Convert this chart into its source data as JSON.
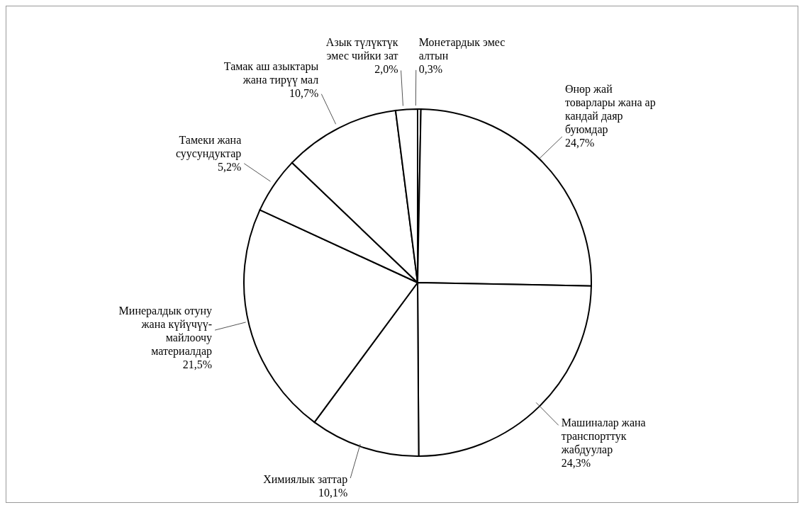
{
  "chart_data": {
    "type": "pie",
    "categories": [
      "Монетардык эмес\nалтын",
      "Өнөр жай\nтоварлары жана ар\nкандай даяр\nбуюмдар",
      "Машиналар жана\nтранспорттук\nжабдуулар",
      "Химиялык заттар",
      "Минералдык отуну\nжана күйүчүү-\nмайлоочу\nматериалдар",
      "Тамеки жана\nсуусундуктар",
      "Тамак аш азыктары\nжана тирүү мал",
      "Азык түлүктүк\nэмес чийки зат"
    ],
    "values": [
      0.3,
      24.7,
      24.3,
      10.1,
      21.5,
      5.2,
      10.7,
      2.0
    ],
    "value_labels": [
      "0,3%",
      "24,7%",
      "24,3%",
      "10,1%",
      "21,5%",
      "5,2%",
      "10,7%",
      "2,0%"
    ],
    "colors": [
      "#ffffff",
      "#ffffff",
      "#ffffff",
      "#ffffff",
      "#ffffff",
      "#ffffff",
      "#ffffff",
      "#ffffff"
    ]
  }
}
